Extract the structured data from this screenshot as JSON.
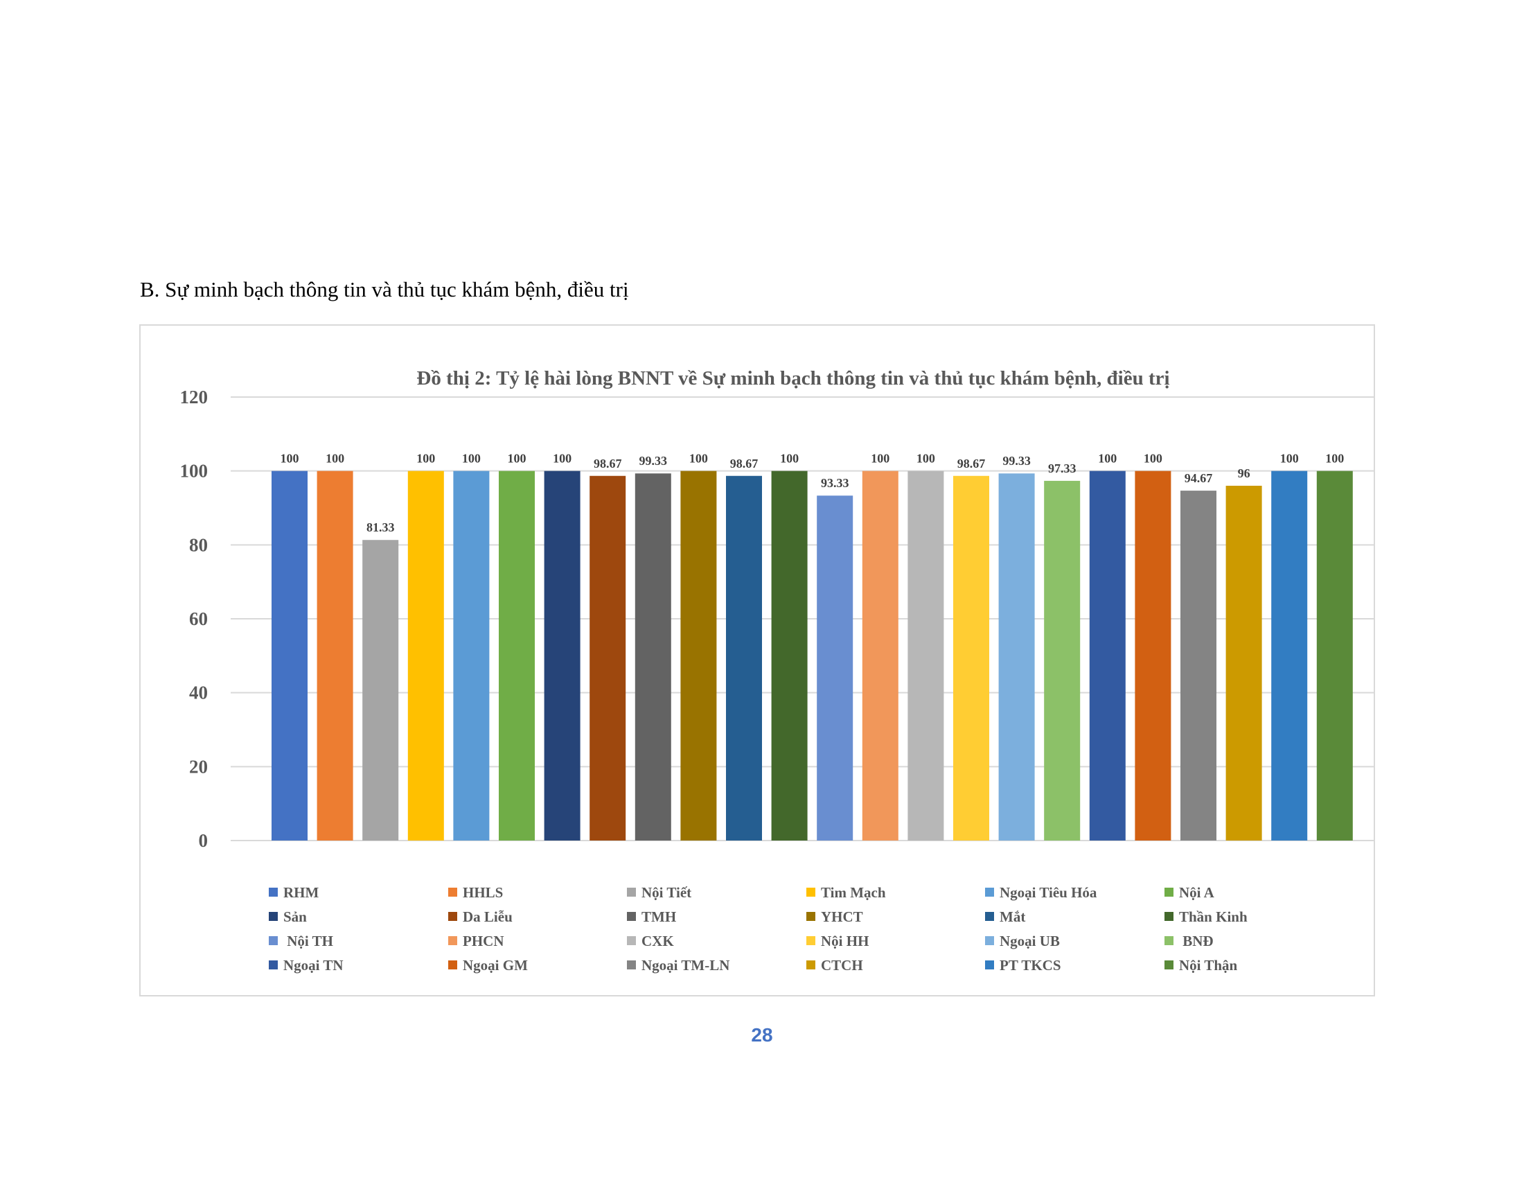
{
  "heading": "B. Sự minh bạch thông tin và thủ tục khám bệnh, điều trị",
  "page_number": "28",
  "chart_data": {
    "type": "bar",
    "title": "Đồ thị 2: Tỷ lệ hài lòng BNNT về Sự minh bạch thông tin và thủ tục khám bệnh, điều trị",
    "xlabel": "",
    "ylabel": "",
    "ylim": [
      0,
      120
    ],
    "yticks": [
      "0",
      "20",
      "40",
      "60",
      "80",
      "100",
      "120"
    ],
    "grid": true,
    "legend_position": "bottom",
    "categories": [
      "RHM",
      "HHLS",
      "Nội Tiết",
      "Tim Mạch",
      "Ngoại Tiêu Hóa",
      "Nội A",
      "Sản",
      "Da Liễu",
      "TMH",
      "YHCT",
      "Mắt",
      "Thần Kinh",
      " Nội TH",
      "PHCN",
      "CXK",
      "Nội HH",
      "Ngoại UB",
      " BNĐ",
      "Ngoại TN",
      "Ngoại GM",
      "Ngoại TM-LN",
      "CTCH",
      "PT TKCS",
      "Nội Thận"
    ],
    "values": [
      100,
      100,
      81.33,
      100,
      100,
      100,
      100,
      98.67,
      99.33,
      100,
      98.67,
      100,
      93.33,
      100,
      100,
      98.67,
      99.33,
      97.33,
      100,
      100,
      94.67,
      96,
      100,
      100
    ],
    "value_labels": [
      "100",
      "100",
      "81.33",
      "100",
      "100",
      "100",
      "100",
      "98.67",
      "99.33",
      "100",
      "98.67",
      "100",
      "93.33",
      "100",
      "100",
      "98.67",
      "99.33",
      "97.33",
      "100",
      "100",
      "94.67",
      "96",
      "100",
      "100"
    ],
    "colors": [
      "#4472c4",
      "#ed7d31",
      "#a5a5a5",
      "#ffc000",
      "#5b9bd5",
      "#70ad47",
      "#264478",
      "#9e480e",
      "#636363",
      "#997300",
      "#255e91",
      "#43682b",
      "#698ed0",
      "#f1975a",
      "#b7b7b7",
      "#ffcd33",
      "#7cafdd",
      "#8cc168",
      "#335aa1",
      "#d26012",
      "#848484",
      "#cc9a00",
      "#327dc2",
      "#5a8a39"
    ]
  }
}
